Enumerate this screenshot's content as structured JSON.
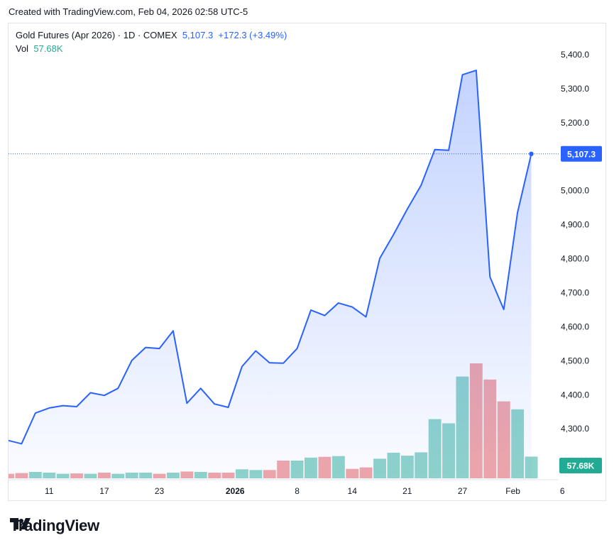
{
  "caption": "Created with TradingView.com, Feb 04, 2026 02:58 UTC-5",
  "legend": {
    "symbol": "Gold Futures (Apr 2026) · 1D · COMEX",
    "last": "5,107.3",
    "change": "+172.3",
    "change_pct": "(+3.49%)",
    "vol_label": "Vol",
    "vol_value": "57.68K"
  },
  "brand": {
    "name": "TradingView",
    "icon": "tradingview-logo-icon"
  },
  "colors": {
    "line": "#2962ff",
    "area": "#2962ff",
    "vol_up": "#8fd3cb",
    "vol_down": "#f0a6a9",
    "vol_label": "#22ab94",
    "price_tag": "#2962ff"
  },
  "chart_data": {
    "type": "area",
    "title": "Gold Futures (Apr 2026) · 1D · COMEX",
    "y_axis": {
      "position": "right",
      "ticks": [
        4200,
        4300,
        4400,
        4500,
        4600,
        4700,
        4800,
        4900,
        5000,
        5100,
        5200,
        5300,
        5400
      ],
      "tick_labels": [
        "4,200.0",
        "4,300.0",
        "4,400.0",
        "4,500.0",
        "4,600.0",
        "4,700.0",
        "4,800.0",
        "4,900.0",
        "5,000.0",
        "5,100.0",
        "5,200.0",
        "5,300.0",
        "5,400.0"
      ],
      "range": [
        4170,
        5470
      ]
    },
    "x_axis": {
      "tick_labels": [
        {
          "label": "11",
          "date": "2025-12-11",
          "bold": false
        },
        {
          "label": "17",
          "date": "2025-12-17",
          "bold": false
        },
        {
          "label": "23",
          "date": "2025-12-23",
          "bold": false
        },
        {
          "label": "2026",
          "date": "2026-01-01",
          "bold": true
        },
        {
          "label": "8",
          "date": "2026-01-08",
          "bold": false
        },
        {
          "label": "14",
          "date": "2026-01-14",
          "bold": false
        },
        {
          "label": "21",
          "date": "2026-01-21",
          "bold": false
        },
        {
          "label": "27",
          "date": "2026-01-27",
          "bold": false
        },
        {
          "label": "Feb",
          "date": "2026-02-01",
          "bold": false
        },
        {
          "label": "6",
          "date": "2026-02-06",
          "bold": false
        }
      ]
    },
    "series": [
      {
        "type": "price",
        "points": [
          {
            "date": "2025-12-08",
            "close": 4265
          },
          {
            "date": "2025-12-09",
            "close": 4255
          },
          {
            "date": "2025-12-10",
            "close": 4345
          },
          {
            "date": "2025-12-11",
            "close": 4360
          },
          {
            "date": "2025-12-12",
            "close": 4367
          },
          {
            "date": "2025-12-15",
            "close": 4364
          },
          {
            "date": "2025-12-16",
            "close": 4405
          },
          {
            "date": "2025-12-17",
            "close": 4397
          },
          {
            "date": "2025-12-18",
            "close": 4418
          },
          {
            "date": "2025-12-19",
            "close": 4500
          },
          {
            "date": "2025-12-22",
            "close": 4538
          },
          {
            "date": "2025-12-23",
            "close": 4535
          },
          {
            "date": "2025-12-24",
            "close": 4587
          },
          {
            "date": "2025-12-26",
            "close": 4374
          },
          {
            "date": "2025-12-29",
            "close": 4418
          },
          {
            "date": "2025-12-30",
            "close": 4372
          },
          {
            "date": "2025-12-31",
            "close": 4362
          },
          {
            "date": "2026-01-02",
            "close": 4482
          },
          {
            "date": "2026-01-05",
            "close": 4528
          },
          {
            "date": "2026-01-06",
            "close": 4493
          },
          {
            "date": "2026-01-07",
            "close": 4492
          },
          {
            "date": "2026-01-08",
            "close": 4535
          },
          {
            "date": "2026-01-09",
            "close": 4648
          },
          {
            "date": "2026-01-12",
            "close": 4632
          },
          {
            "date": "2026-01-13",
            "close": 4669
          },
          {
            "date": "2026-01-14",
            "close": 4657
          },
          {
            "date": "2026-01-15",
            "close": 4628
          },
          {
            "date": "2026-01-16",
            "close": 4800
          },
          {
            "date": "2026-01-20",
            "close": 4870
          },
          {
            "date": "2026-01-21",
            "close": 4945
          },
          {
            "date": "2026-01-22",
            "close": 5015
          },
          {
            "date": "2026-01-23",
            "close": 5120
          },
          {
            "date": "2026-01-26",
            "close": 5118
          },
          {
            "date": "2026-01-27",
            "close": 5340
          },
          {
            "date": "2026-01-28",
            "close": 5353
          },
          {
            "date": "2026-01-29",
            "close": 4745
          },
          {
            "date": "2026-01-30",
            "close": 4650
          },
          {
            "date": "2026-02-02",
            "close": 4935
          },
          {
            "date": "2026-02-03",
            "close": 5107.3
          }
        ]
      },
      {
        "type": "volume",
        "points": [
          {
            "date": "2025-12-08",
            "volume": 12,
            "direction": "down"
          },
          {
            "date": "2025-12-09",
            "volume": 14,
            "direction": "down"
          },
          {
            "date": "2025-12-10",
            "volume": 17,
            "direction": "up"
          },
          {
            "date": "2025-12-11",
            "volume": 15,
            "direction": "up"
          },
          {
            "date": "2025-12-12",
            "volume": 12,
            "direction": "up"
          },
          {
            "date": "2025-12-15",
            "volume": 13,
            "direction": "down"
          },
          {
            "date": "2025-12-16",
            "volume": 12,
            "direction": "up"
          },
          {
            "date": "2025-12-17",
            "volume": 15,
            "direction": "down"
          },
          {
            "date": "2025-12-18",
            "volume": 12,
            "direction": "up"
          },
          {
            "date": "2025-12-19",
            "volume": 15,
            "direction": "up"
          },
          {
            "date": "2025-12-22",
            "volume": 15,
            "direction": "up"
          },
          {
            "date": "2025-12-23",
            "volume": 12,
            "direction": "down"
          },
          {
            "date": "2025-12-24",
            "volume": 15,
            "direction": "up"
          },
          {
            "date": "2025-12-26",
            "volume": 18,
            "direction": "down"
          },
          {
            "date": "2025-12-29",
            "volume": 17,
            "direction": "up"
          },
          {
            "date": "2025-12-30",
            "volume": 15,
            "direction": "down"
          },
          {
            "date": "2025-12-31",
            "volume": 15,
            "direction": "down"
          },
          {
            "date": "2026-01-02",
            "volume": 24,
            "direction": "up"
          },
          {
            "date": "2026-01-05",
            "volume": 22,
            "direction": "up"
          },
          {
            "date": "2026-01-06",
            "volume": 22,
            "direction": "down"
          },
          {
            "date": "2026-01-07",
            "volume": 47,
            "direction": "down"
          },
          {
            "date": "2026-01-08",
            "volume": 47,
            "direction": "up"
          },
          {
            "date": "2026-01-09",
            "volume": 55,
            "direction": "up"
          },
          {
            "date": "2026-01-12",
            "volume": 57,
            "direction": "down"
          },
          {
            "date": "2026-01-13",
            "volume": 59,
            "direction": "up"
          },
          {
            "date": "2026-01-14",
            "volume": 25,
            "direction": "down"
          },
          {
            "date": "2026-01-15",
            "volume": 29,
            "direction": "down"
          },
          {
            "date": "2026-01-16",
            "volume": 52,
            "direction": "up"
          },
          {
            "date": "2026-01-20",
            "volume": 68,
            "direction": "up"
          },
          {
            "date": "2026-01-21",
            "volume": 60,
            "direction": "up"
          },
          {
            "date": "2026-01-22",
            "volume": 69,
            "direction": "up"
          },
          {
            "date": "2026-01-23",
            "volume": 157,
            "direction": "up"
          },
          {
            "date": "2026-01-26",
            "volume": 146,
            "direction": "up"
          },
          {
            "date": "2026-01-27",
            "volume": 270,
            "direction": "up"
          },
          {
            "date": "2026-01-28",
            "volume": 305,
            "direction": "down"
          },
          {
            "date": "2026-01-29",
            "volume": 262,
            "direction": "down"
          },
          {
            "date": "2026-01-30",
            "volume": 204,
            "direction": "down"
          },
          {
            "date": "2026-02-02",
            "volume": 183,
            "direction": "up"
          },
          {
            "date": "2026-02-03",
            "volume": 57.68,
            "direction": "up"
          }
        ]
      }
    ],
    "last_price_label": "5,107.3",
    "last_volume_label": "57.68K",
    "grid": false,
    "legend_position": "top-left"
  }
}
